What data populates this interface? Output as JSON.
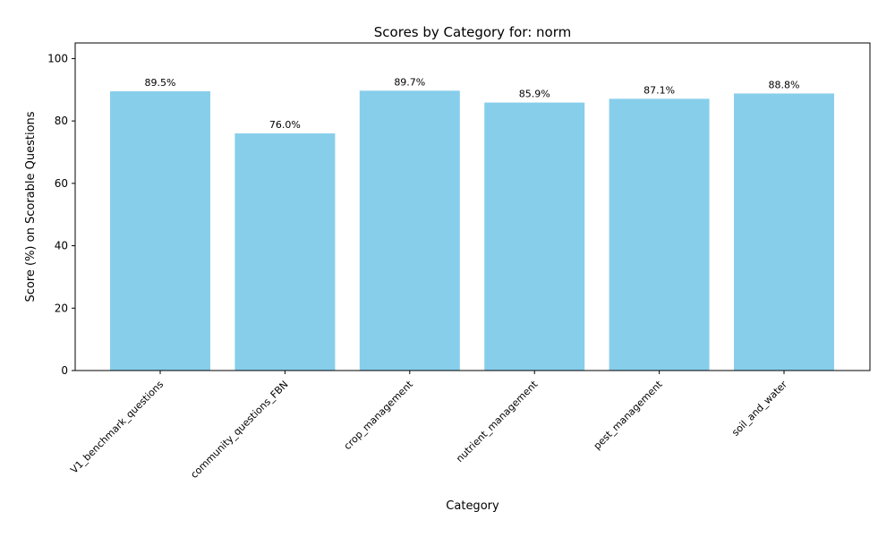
{
  "chart_data": {
    "type": "bar",
    "title": "Scores by Category for: norm",
    "xlabel": "Category",
    "ylabel": "Score (%) on Scorable Questions",
    "categories": [
      "V1_benchmark_questions",
      "community_questions_FBN",
      "crop_management",
      "nutrient_management",
      "pest_management",
      "soil_and_water"
    ],
    "values": [
      89.5,
      76.0,
      89.7,
      85.9,
      87.1,
      88.8
    ],
    "value_labels": [
      "89.5%",
      "76.0%",
      "89.7%",
      "85.9%",
      "87.1%",
      "88.8%"
    ],
    "ylim": [
      0,
      105
    ],
    "yticks": [
      0,
      20,
      40,
      60,
      80,
      100
    ],
    "grid": false,
    "bar_color": "#87ceeb"
  }
}
